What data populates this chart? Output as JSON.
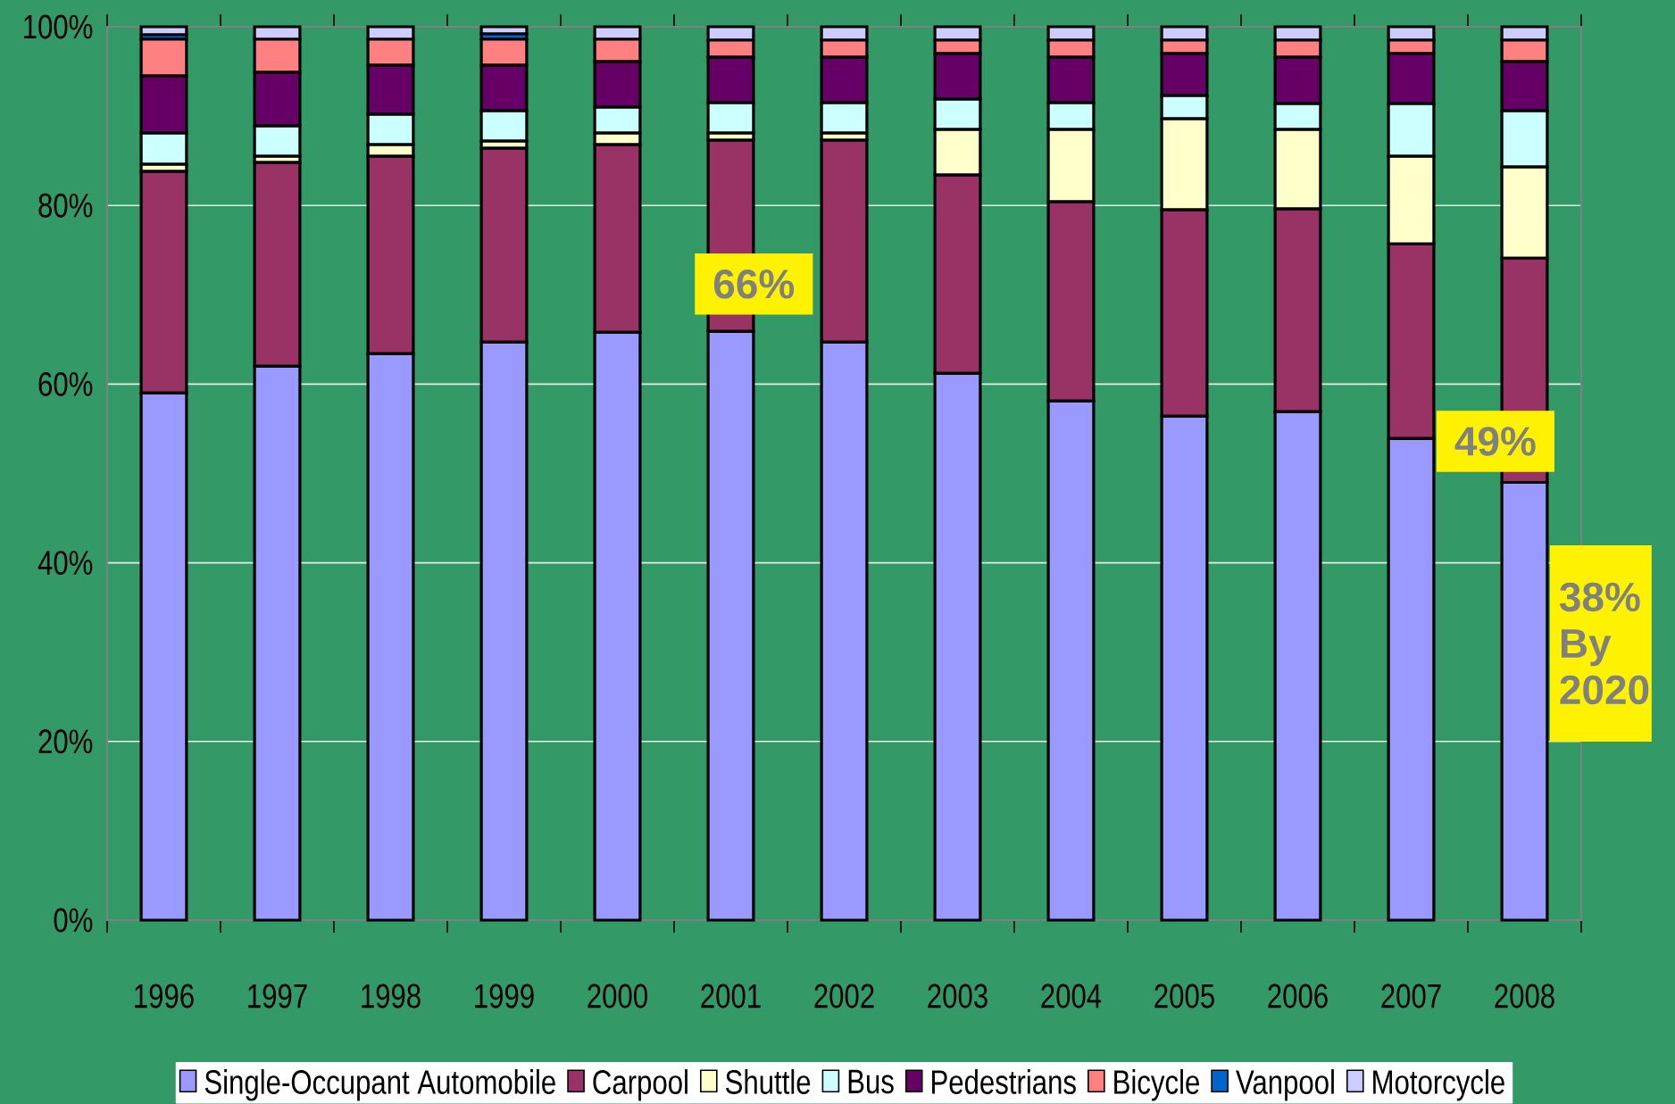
{
  "chart_data": {
    "type": "bar",
    "stacked": true,
    "categories": [
      "1996",
      "1997",
      "1998",
      "1999",
      "2000",
      "2001",
      "2002",
      "2003",
      "2004",
      "2005",
      "2006",
      "2007",
      "2008"
    ],
    "ylim": [
      0,
      100
    ],
    "yticks": [
      {
        "value": 0,
        "label": "0%"
      },
      {
        "value": 20,
        "label": "20%"
      },
      {
        "value": 40,
        "label": "40%"
      },
      {
        "value": 60,
        "label": "60%"
      },
      {
        "value": 80,
        "label": "80%"
      },
      {
        "value": 100,
        "label": "100%"
      }
    ],
    "grid": "y",
    "legend": "bottom",
    "series": [
      {
        "name": "Single-Occupant Automobile",
        "color": "#9999ff",
        "values": [
          59.0,
          62.0,
          63.4,
          64.7,
          65.8,
          65.9,
          64.7,
          61.2,
          58.1,
          56.4,
          56.9,
          53.9,
          49.0
        ]
      },
      {
        "name": "Carpool",
        "color": "#993366",
        "values": [
          24.8,
          22.8,
          22.1,
          21.7,
          21.0,
          21.4,
          22.6,
          22.2,
          22.3,
          23.1,
          22.7,
          21.8,
          25.1
        ]
      },
      {
        "name": "Shuttle",
        "color": "#ffffcc",
        "values": [
          0.8,
          0.7,
          1.3,
          0.8,
          1.3,
          0.8,
          0.8,
          5.1,
          8.1,
          10.2,
          8.9,
          9.8,
          10.2
        ]
      },
      {
        "name": "Bus",
        "color": "#ccffff",
        "values": [
          3.5,
          3.4,
          3.4,
          3.4,
          2.9,
          3.4,
          3.4,
          3.4,
          3.0,
          2.6,
          2.9,
          5.9,
          6.3
        ]
      },
      {
        "name": "Pedestrians",
        "color": "#660066",
        "values": [
          6.4,
          6.0,
          5.5,
          5.1,
          5.1,
          5.1,
          5.1,
          5.1,
          5.1,
          4.7,
          5.2,
          5.6,
          5.5
        ]
      },
      {
        "name": "Bicycle",
        "color": "#ff8080",
        "values": [
          4.1,
          3.7,
          2.9,
          2.9,
          2.5,
          1.9,
          1.9,
          1.5,
          1.9,
          1.5,
          1.9,
          1.5,
          2.4
        ]
      },
      {
        "name": "Vanpool",
        "color": "#0066cc",
        "values": [
          0.5,
          0,
          0,
          0.6,
          0,
          0,
          0,
          0,
          0,
          0,
          0,
          0,
          0
        ]
      },
      {
        "name": "Motorcycle",
        "color": "#ccccff",
        "values": [
          0.9,
          1.4,
          1.4,
          0.8,
          1.4,
          1.5,
          1.5,
          1.5,
          1.5,
          1.5,
          1.5,
          1.5,
          1.5
        ]
      }
    ],
    "annotations": [
      {
        "text": "66%",
        "x": "2001",
        "y": 66
      },
      {
        "text": "49%",
        "x": "2008",
        "y": 49
      },
      "38% By 2020"
    ]
  }
}
